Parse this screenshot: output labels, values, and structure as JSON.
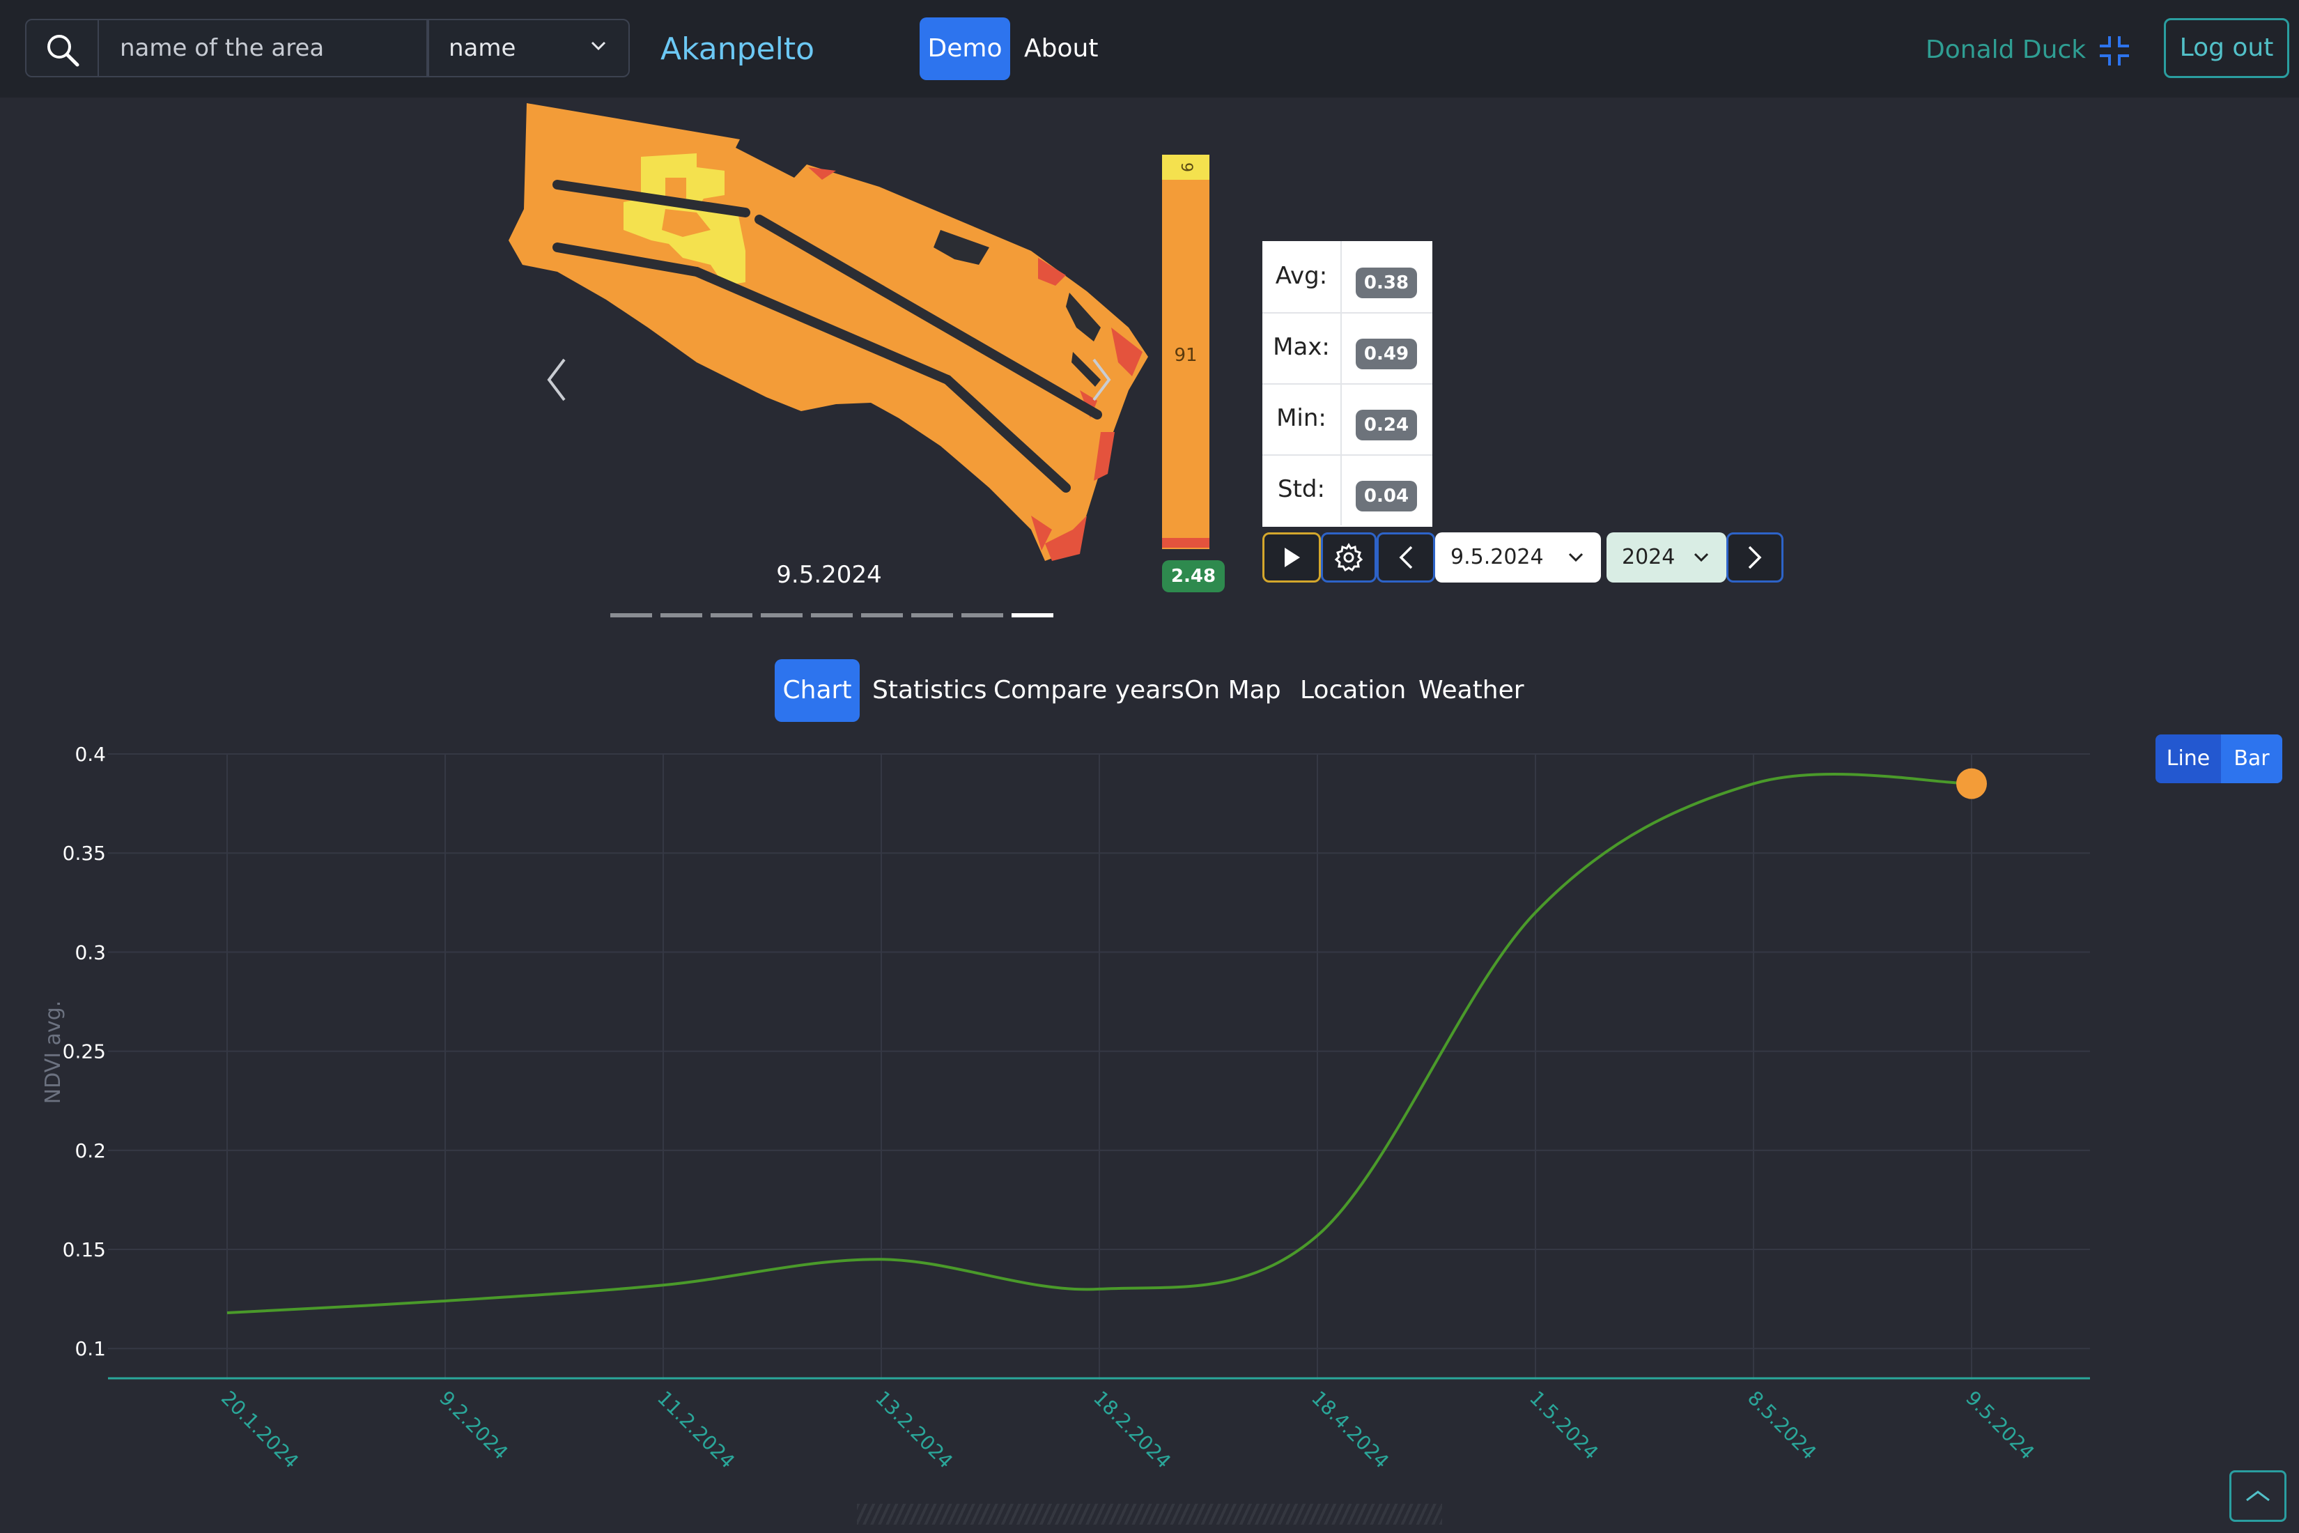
{
  "navbar": {
    "search_placeholder": "name of the area",
    "search_mode": "name",
    "app_title": "Akanpelto",
    "nav_demo": "Demo",
    "nav_about": "About",
    "user_name": "Donald Duck",
    "logout": "Log out"
  },
  "carousel": {
    "date": "9.5.2024",
    "slide_count": 9,
    "active_slide": 9
  },
  "scale": {
    "top_label": "9",
    "mid_label": "91",
    "badge": "2.48",
    "colors": {
      "high": "#f4e14e",
      "mid": "#f39c38",
      "low": "#e4533d"
    }
  },
  "stats": {
    "rows": [
      {
        "label": "Avg:",
        "value": "0.38"
      },
      {
        "label": "Max:",
        "value": "0.49"
      },
      {
        "label": "Min:",
        "value": "0.24"
      },
      {
        "label": "Std:",
        "value": "0.04"
      }
    ]
  },
  "controls": {
    "date_value": "9.5.2024",
    "year_value": "2024"
  },
  "tabs": [
    "Chart",
    "Statistics",
    "Compare years",
    "On Map",
    "Location",
    "Weather"
  ],
  "active_tab": "Chart",
  "chart_toggle": {
    "line": "Line",
    "bar": "Bar"
  },
  "chart_data": {
    "type": "line",
    "ylabel": "NDVI avg.",
    "xlabel": "",
    "categories": [
      "20.1.2024",
      "9.2.2024",
      "11.2.2024",
      "13.2.2024",
      "18.2.2024",
      "18.4.2024",
      "1.5.2024",
      "8.5.2024",
      "9.5.2024"
    ],
    "values": [
      0.118,
      0.124,
      0.132,
      0.145,
      0.13,
      0.157,
      0.32,
      0.385,
      0.385
    ],
    "yticks": [
      0.1,
      0.15,
      0.2,
      0.25,
      0.3,
      0.35,
      0.4
    ],
    "ylim": [
      0.092,
      0.4
    ],
    "grid": true,
    "line_color": "#4a9a2a",
    "highlight_color": "#f39c38"
  }
}
